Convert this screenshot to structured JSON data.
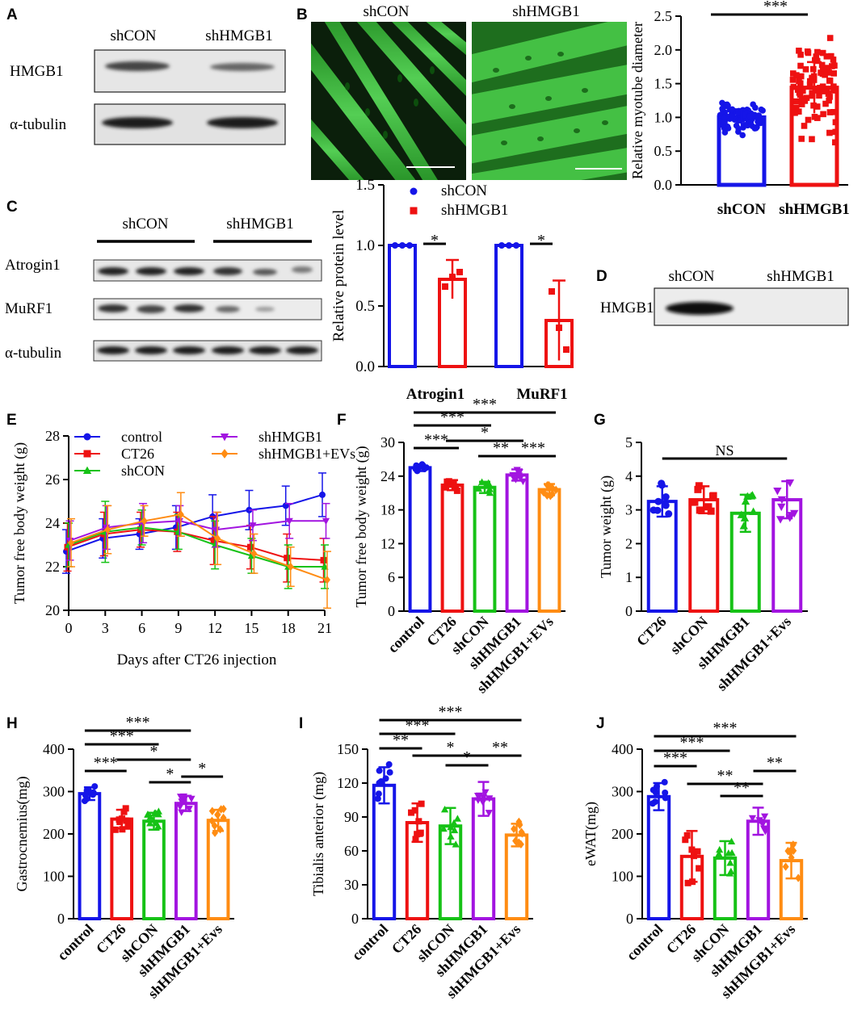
{
  "panel_letters": [
    "A",
    "B",
    "C",
    "D",
    "E",
    "F",
    "G",
    "H",
    "I",
    "J"
  ],
  "panel_a": {
    "lanes": [
      "shCON",
      "shHMGB1"
    ],
    "rows": [
      "HMGB1",
      "α-tubulin"
    ]
  },
  "panel_b": {
    "image_titles": [
      "shCON",
      "shHMGB1"
    ]
  },
  "panel_c": {
    "groups": [
      "shCON",
      "shHMGB1"
    ],
    "rows": [
      "Atrogin1",
      "MuRF1",
      "α-tubulin"
    ]
  },
  "panel_d": {
    "lanes": [
      "shCON",
      "shHMGB1"
    ],
    "rows": [
      "HMGB1"
    ]
  },
  "colors": {
    "blue": "#1515e8",
    "red": "#ee1111",
    "green": "#16c216",
    "purple": "#a214e0",
    "orange": "#ff8c12",
    "fluor_green": "#35c235"
  },
  "chart_data": [
    {
      "id": "B_chart",
      "type": "bar",
      "ylabel": "Relative myotube diameter",
      "categories": [
        "shCON",
        "shHMGB1"
      ],
      "values": [
        1.0,
        1.44
      ],
      "errors": [
        0.12,
        0.38
      ],
      "ylim": [
        0,
        2.5
      ],
      "yticks": [
        0.0,
        0.5,
        1.0,
        1.5,
        2.0,
        2.5
      ],
      "ytick_labels": [
        "0.0",
        "0.5",
        "1.0",
        "1.5",
        "2.0",
        "2.5"
      ],
      "significance": [
        {
          "from": 0,
          "to": 1,
          "label": "***"
        }
      ]
    },
    {
      "id": "C_chart",
      "type": "bar",
      "ylabel": "Relative protein level",
      "categories": [
        "Atrogin1",
        "MuRF1"
      ],
      "series": [
        {
          "name": "shCON",
          "values": [
            1.0,
            1.0
          ],
          "errors": [
            0,
            0
          ]
        },
        {
          "name": "shHMGB1",
          "values": [
            0.72,
            0.38
          ],
          "errors": [
            0.16,
            0.33
          ]
        }
      ],
      "points": [
        [
          [
            1,
            1,
            1
          ],
          [
            0.66,
            0.74,
            0.78
          ]
        ],
        [
          [
            1,
            1,
            1
          ],
          [
            0.62,
            0.32,
            0.14
          ]
        ]
      ],
      "ylim": [
        0,
        1.5
      ],
      "yticks": [
        0.0,
        0.5,
        1.0,
        1.5
      ],
      "ytick_labels": [
        "0.0",
        "0.5",
        "1.0",
        "1.5"
      ],
      "significance": [
        "*",
        "*"
      ]
    },
    {
      "id": "E_chart",
      "type": "line",
      "xlabel": "Days after CT26 injection",
      "ylabel": "Tumor free body weight (g)",
      "x": [
        0,
        3,
        6,
        9,
        12,
        15,
        18,
        21
      ],
      "ylim": [
        20,
        28
      ],
      "yticks": [
        20,
        22,
        24,
        26,
        28
      ],
      "ytick_labels": [
        "20",
        "22",
        "24",
        "26",
        "28"
      ],
      "xtick_labels": [
        "0",
        "3",
        "6",
        "9",
        "12",
        "15",
        "18",
        "21"
      ],
      "series": [
        {
          "name": "control",
          "values": [
            22.7,
            23.3,
            23.5,
            23.8,
            24.3,
            24.6,
            24.8,
            25.3
          ],
          "errors": [
            1.0,
            0.9,
            0.7,
            1.0,
            1.0,
            0.9,
            0.9,
            1.0
          ]
        },
        {
          "name": "CT26",
          "values": [
            22.9,
            23.5,
            23.7,
            23.6,
            23.2,
            22.9,
            22.4,
            22.3
          ],
          "errors": [
            1.1,
            1.0,
            0.8,
            0.9,
            1.1,
            1.0,
            1.1,
            1.0
          ]
        },
        {
          "name": "shCON",
          "values": [
            23.0,
            23.6,
            23.8,
            23.6,
            23.0,
            22.5,
            22.0,
            22.0
          ],
          "errors": [
            1.0,
            1.4,
            0.8,
            0.8,
            1.1,
            0.8,
            1.0,
            1.0
          ]
        },
        {
          "name": "shHMGB1",
          "values": [
            23.2,
            23.8,
            24.0,
            24.1,
            23.7,
            23.9,
            24.1,
            24.1
          ],
          "errors": [
            0.9,
            1.0,
            0.9,
            0.7,
            0.8,
            0.7,
            0.8,
            0.8
          ]
        },
        {
          "name": "shHMGB1+EVs",
          "values": [
            23.1,
            23.7,
            24.1,
            24.4,
            23.3,
            22.6,
            22.0,
            21.4
          ],
          "errors": [
            1.1,
            1.1,
            0.7,
            1.0,
            1.2,
            0.9,
            0.9,
            1.3
          ]
        }
      ]
    },
    {
      "id": "F_chart",
      "type": "bar",
      "ylabel": "Tumor free body weight (g)",
      "categories": [
        "control",
        "CT26",
        "shCON",
        "shHMGB1",
        "shHMGB1+EVs"
      ],
      "values": [
        25.5,
        22.4,
        22.0,
        24.2,
        21.6
      ],
      "errors": [
        0.6,
        0.9,
        1.0,
        1.0,
        1.0
      ],
      "ylim": [
        0,
        30
      ],
      "yticks": [
        0,
        6,
        12,
        18,
        24,
        30
      ],
      "ytick_labels": [
        "0",
        "6",
        "12",
        "18",
        "24",
        "30"
      ],
      "significance": [
        {
          "from": 0,
          "to": 4,
          "label": "***"
        },
        {
          "from": 0,
          "to": 2,
          "label": "***"
        },
        {
          "from": 1,
          "to": 3,
          "label": "*"
        },
        {
          "from": 0,
          "to": 1,
          "label": "***"
        },
        {
          "from": 2,
          "to": 3,
          "label": "**"
        },
        {
          "from": 3,
          "to": 4,
          "label": "***"
        }
      ]
    },
    {
      "id": "G_chart",
      "type": "bar",
      "ylabel": "Tumor weight (g)",
      "categories": [
        "CT26",
        "shCON",
        "shHMGB1",
        "shHMGB1+Evs"
      ],
      "values": [
        3.25,
        3.3,
        2.9,
        3.3
      ],
      "errors": [
        0.45,
        0.4,
        0.55,
        0.55
      ],
      "ylim": [
        0,
        5
      ],
      "yticks": [
        0,
        1,
        2,
        3,
        4,
        5
      ],
      "ytick_labels": [
        "0",
        "1",
        "2",
        "3",
        "4",
        "5"
      ],
      "significance": [
        {
          "from": 0,
          "to": 3,
          "label": "NS"
        }
      ]
    },
    {
      "id": "H_chart",
      "type": "bar",
      "ylabel": "Gastrocnemius(mg)",
      "categories": [
        "control",
        "CT26",
        "shCON",
        "shHMGB1",
        "shHMGB1+Evs"
      ],
      "values": [
        295,
        235,
        230,
        272,
        232
      ],
      "errors": [
        15,
        22,
        20,
        18,
        25
      ],
      "ylim": [
        0,
        400
      ],
      "yticks": [
        0,
        100,
        200,
        300,
        400
      ],
      "ytick_labels": [
        "0",
        "100",
        "200",
        "300",
        "400"
      ],
      "significance": [
        {
          "from": 0,
          "to": 3,
          "label": "***"
        },
        {
          "from": 0,
          "to": 2,
          "label": "***"
        },
        {
          "from": 1,
          "to": 3,
          "label": "*"
        },
        {
          "from": 0,
          "to": 1,
          "label": "***"
        },
        {
          "from": 2,
          "to": 3,
          "label": "*"
        },
        {
          "from": 3,
          "to": 4,
          "label": "*"
        }
      ]
    },
    {
      "id": "I_chart",
      "type": "bar",
      "ylabel": "Tibialis anterior (mg)",
      "categories": [
        "control",
        "CT26",
        "shCON",
        "shHMGB1",
        "shHMGB1+Evs"
      ],
      "values": [
        118,
        85,
        82,
        106,
        74
      ],
      "errors": [
        16,
        17,
        16,
        15,
        10
      ],
      "ylim": [
        0,
        150
      ],
      "yticks": [
        0,
        30,
        60,
        90,
        120,
        150
      ],
      "ytick_labels": [
        "0",
        "30",
        "60",
        "90",
        "120",
        "150"
      ],
      "significance": [
        {
          "from": 0,
          "to": 4,
          "label": "***"
        },
        {
          "from": 0,
          "to": 2,
          "label": "***"
        },
        {
          "from": 0,
          "to": 1,
          "label": "**"
        },
        {
          "from": 1,
          "to": 3,
          "label": "*"
        },
        {
          "from": 2,
          "to": 3,
          "label": "*"
        },
        {
          "from": 3,
          "to": 4,
          "label": "**"
        }
      ]
    },
    {
      "id": "J_chart",
      "type": "bar",
      "ylabel": "eWAT(mg)",
      "categories": [
        "control",
        "CT26",
        "shCON",
        "shHMGB1",
        "shHMGB1+Evs"
      ],
      "values": [
        288,
        147,
        143,
        230,
        137
      ],
      "errors": [
        32,
        60,
        40,
        32,
        42
      ],
      "ylim": [
        0,
        400
      ],
      "yticks": [
        0,
        100,
        200,
        300,
        400
      ],
      "ytick_labels": [
        "0",
        "100",
        "200",
        "300",
        "400"
      ],
      "significance": [
        {
          "from": 0,
          "to": 4,
          "label": "***"
        },
        {
          "from": 0,
          "to": 2,
          "label": "***"
        },
        {
          "from": 0,
          "to": 1,
          "label": "***"
        },
        {
          "from": 1,
          "to": 3,
          "label": "**"
        },
        {
          "from": 2,
          "to": 3,
          "label": "**"
        },
        {
          "from": 3,
          "to": 4,
          "label": "**"
        }
      ]
    }
  ]
}
